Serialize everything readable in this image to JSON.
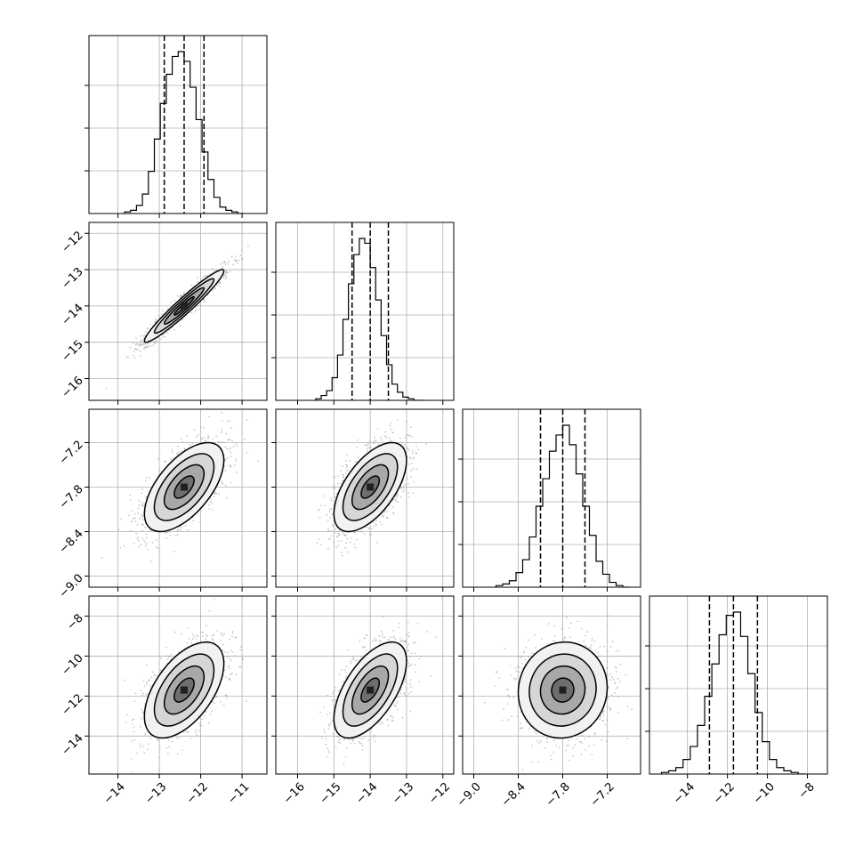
{
  "chart_data": {
    "type": "corner",
    "title": "",
    "parameters": [
      {
        "axis_ticks": [
          -14,
          -13,
          -12,
          -11
        ],
        "axis_tick_labels": [
          "−14",
          "−13",
          "−12",
          "−11"
        ],
        "range": [
          -14.7,
          -10.4
        ],
        "mean": -12.4,
        "quantiles": [
          -12.88,
          -12.4,
          -11.92
        ],
        "sigma": 0.48
      },
      {
        "axis_ticks": [
          -16,
          -15,
          -14,
          -13,
          -12
        ],
        "axis_tick_labels": [
          "−16",
          "−15",
          "−14",
          "−13",
          "−12"
        ],
        "range": [
          -16.6,
          -11.7
        ],
        "mean": -14.0,
        "quantiles": [
          -14.5,
          -14.0,
          -13.5
        ],
        "sigma": 0.5
      },
      {
        "axis_ticks": [
          -9.0,
          -8.4,
          -7.8,
          -7.2
        ],
        "axis_tick_labels": [
          "−9.0",
          "−8.4",
          "−7.8",
          "−7.2"
        ],
        "range": [
          -9.15,
          -6.75
        ],
        "mean": -7.8,
        "quantiles": [
          -8.1,
          -7.8,
          -7.5
        ],
        "sigma": 0.3
      },
      {
        "axis_ticks": [
          -14,
          -12,
          -10,
          -8
        ],
        "axis_tick_labels": [
          "−14",
          "−12",
          "−10",
          "−8"
        ],
        "range": [
          -15.9,
          -7.0
        ],
        "mean": -11.7,
        "quantiles": [
          -12.9,
          -11.7,
          -10.5
        ],
        "sigma": 1.2
      }
    ],
    "histograms": [
      {
        "param": 0,
        "bins": 20,
        "counts": [
          1,
          2,
          5,
          12,
          26,
          46,
          68,
          86,
          97,
          100,
          94,
          78,
          58,
          38,
          21,
          10,
          4,
          2,
          1,
          0
        ]
      },
      {
        "param": 1,
        "bins": 20,
        "counts": [
          1,
          3,
          6,
          14,
          28,
          50,
          72,
          90,
          100,
          97,
          82,
          62,
          40,
          22,
          10,
          5,
          2,
          1,
          0,
          0
        ]
      },
      {
        "param": 2,
        "bins": 20,
        "counts": [
          1,
          2,
          4,
          9,
          17,
          31,
          50,
          67,
          84,
          94,
          100,
          88,
          70,
          50,
          32,
          16,
          8,
          3,
          1,
          0
        ]
      },
      {
        "param": 3,
        "bins": 20,
        "counts": [
          1,
          2,
          4,
          9,
          17,
          30,
          48,
          68,
          86,
          98,
          100,
          85,
          62,
          38,
          20,
          9,
          4,
          2,
          1,
          0
        ]
      }
    ],
    "pairs": [
      {
        "x": 0,
        "y": 1,
        "correlation": 0.96
      },
      {
        "x": 0,
        "y": 2,
        "correlation": 0.6
      },
      {
        "x": 1,
        "y": 2,
        "correlation": 0.6
      },
      {
        "x": 0,
        "y": 3,
        "correlation": 0.55
      },
      {
        "x": 1,
        "y": 3,
        "correlation": 0.6
      },
      {
        "x": 2,
        "y": 3,
        "correlation": 0.05
      }
    ],
    "contour_sigma_levels": [
      0.5,
      1.0,
      1.5,
      2.0
    ],
    "grid": true,
    "legend": "none",
    "colors": {
      "histogram": "#000000",
      "points": "#9a9a9a",
      "quantile_line": "#000000",
      "grid": "#b0b0b0"
    }
  }
}
